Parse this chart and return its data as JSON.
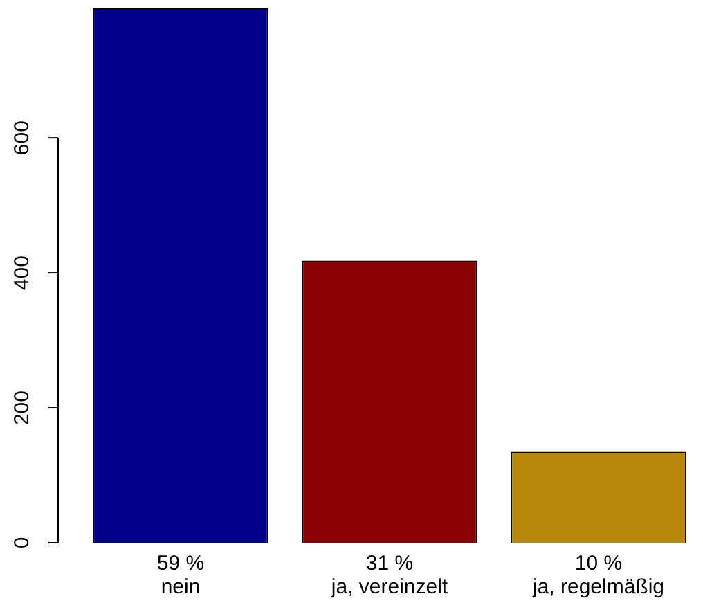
{
  "chart_data": {
    "type": "bar",
    "categories": [
      "59 %\nnein",
      "31 %\nja, vereinzelt",
      "10 %\nja, regelmäßig"
    ],
    "values": [
      792,
      418,
      135
    ],
    "colors": [
      "#00008b",
      "#8b0000",
      "#b8860b"
    ],
    "ylim": [
      0,
      792
    ],
    "yticks": [
      0,
      200,
      400,
      600
    ]
  }
}
